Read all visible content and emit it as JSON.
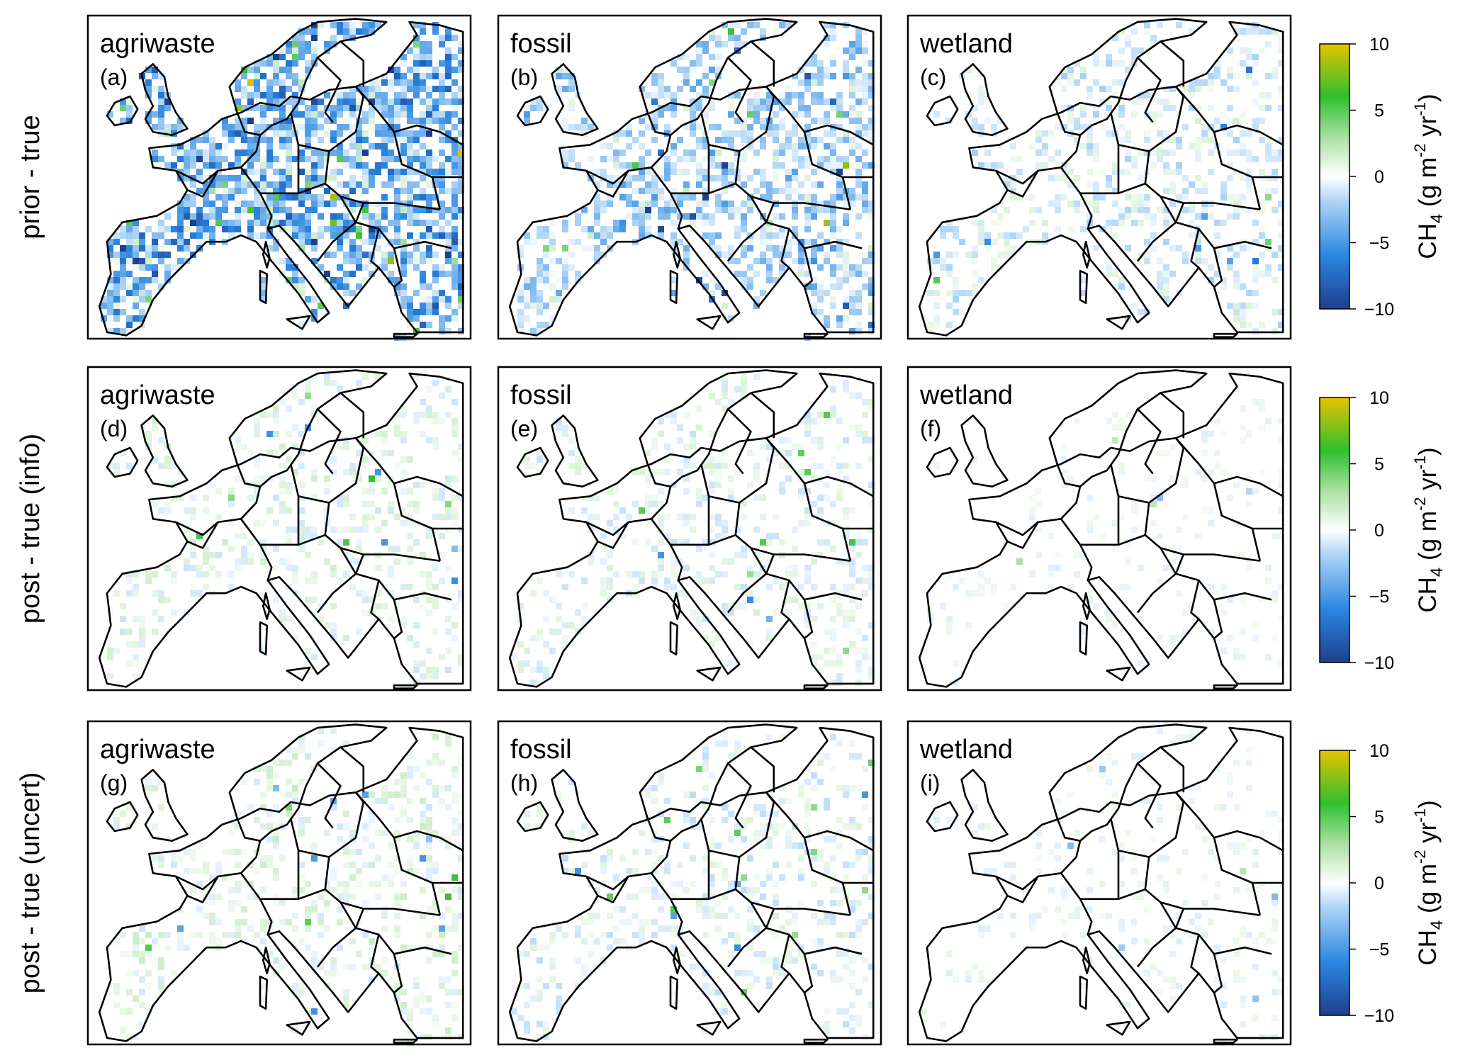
{
  "rows": [
    {
      "label": "prior - true",
      "panels": [
        {
          "source": "agriwaste",
          "letter": "(a)",
          "intensity": 1.0,
          "bias": -0.55
        },
        {
          "source": "fossil",
          "letter": "(b)",
          "intensity": 0.75,
          "bias": -0.35
        },
        {
          "source": "wetland",
          "letter": "(c)",
          "intensity": 0.55,
          "bias": -0.1
        }
      ]
    },
    {
      "label": "post - true (info)",
      "panels": [
        {
          "source": "agriwaste",
          "letter": "(d)",
          "intensity": 0.45,
          "bias": 0.05
        },
        {
          "source": "fossil",
          "letter": "(e)",
          "intensity": 0.45,
          "bias": 0.0
        },
        {
          "source": "wetland",
          "letter": "(f)",
          "intensity": 0.15,
          "bias": 0.0
        }
      ]
    },
    {
      "label": "post - true (uncert)",
      "panels": [
        {
          "source": "agriwaste",
          "letter": "(g)",
          "intensity": 0.45,
          "bias": 0.1
        },
        {
          "source": "fossil",
          "letter": "(h)",
          "intensity": 0.45,
          "bias": -0.05
        },
        {
          "source": "wetland",
          "letter": "(i)",
          "intensity": 0.2,
          "bias": 0.0
        }
      ]
    }
  ],
  "colorbar": {
    "ticks": [
      "10",
      "5",
      "0",
      "−5",
      "−10"
    ],
    "tick_values": [
      10,
      5,
      0,
      -5,
      -10
    ],
    "range": [
      -10,
      10
    ],
    "title_main": "CH",
    "title_sub4": "4",
    "title_unit_a": " (g m",
    "title_sup_m2": "-2",
    "title_unit_b": " yr",
    "title_sup_m1": "-1",
    "title_close": ")",
    "stops": [
      {
        "value": -10,
        "color": "#1f3f8f"
      },
      {
        "value": -6,
        "color": "#2a86e0"
      },
      {
        "value": -2,
        "color": "#a9d2f5"
      },
      {
        "value": 0,
        "color": "#ffffff"
      },
      {
        "value": 3,
        "color": "#a8e0a0"
      },
      {
        "value": 6,
        "color": "#2fbf2f"
      },
      {
        "value": 10,
        "color": "#e6c300"
      }
    ]
  }
}
